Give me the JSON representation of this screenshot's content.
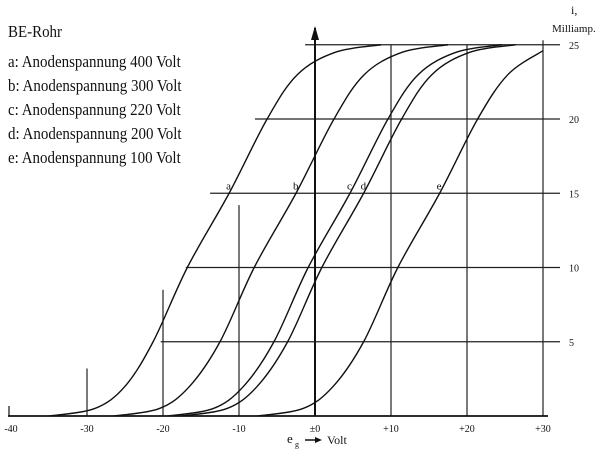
{
  "chart_data": {
    "type": "line",
    "title": "BE-Rohr",
    "xlabel": "e_g → Volt",
    "xlabel_main": "e",
    "xlabel_sub": "g",
    "xlabel_unit": "Volt",
    "ylabel": "i, Milliamp.",
    "ylabel_symbol": "i,",
    "ylabel_unit": "Milliamp.",
    "xlim": [
      -40,
      30
    ],
    "ylim": [
      0,
      25
    ],
    "xticks": [
      -40,
      -30,
      -20,
      -10,
      0,
      10,
      20,
      30
    ],
    "xtick_labels": [
      "-40",
      "-30",
      "-20",
      "-10",
      "±0",
      "+10",
      "+20",
      "+30"
    ],
    "yticks": [
      5,
      10,
      15,
      20,
      25
    ],
    "ytick_labels": [
      "5",
      "10",
      "15",
      "20",
      "25"
    ],
    "grid": true,
    "legend_position": "top-left",
    "series": [
      {
        "key": "a",
        "name": "a: Anodenspannung 400 Volt",
        "x": [
          -35,
          -29,
          -25,
          -21.3,
          -16.8,
          -11.3,
          -6.3,
          -2.3,
          2.7,
          8.7
        ],
        "y": [
          0,
          0.5,
          2,
          5,
          10,
          15,
          20,
          23,
          24.5,
          25
        ]
      },
      {
        "key": "b",
        "name": "b: Anodenspannung 300 Volt",
        "x": [
          -26.5,
          -20.5,
          -16.5,
          -12.5,
          -8,
          -2.5,
          2.5,
          6.5,
          11.5,
          17.5
        ],
        "y": [
          0,
          0.5,
          2,
          5,
          10,
          15,
          20,
          23,
          24.5,
          25
        ]
      },
      {
        "key": "c",
        "name": "c: Anodenspannung 220 Volt",
        "x": [
          -19.4,
          -13.4,
          -9.4,
          -5.4,
          -0.9,
          4.6,
          9.6,
          13.6,
          18.6,
          24.6
        ],
        "y": [
          0,
          0.5,
          2,
          5,
          10,
          15,
          20,
          23,
          24.5,
          25
        ]
      },
      {
        "key": "d",
        "name": "d: Anodenspannung 200 Volt",
        "x": [
          -17.6,
          -11.6,
          -7.6,
          -3.6,
          0.9,
          6.4,
          11.4,
          15.4,
          20.4,
          26.4
        ],
        "y": [
          0,
          0.5,
          2,
          5,
          10,
          15,
          20,
          23,
          24.5,
          25
        ]
      },
      {
        "key": "e",
        "name": "e: Anodenspannung 100 Volt",
        "x": [
          -7.6,
          -1.6,
          2.4,
          6.4,
          10.9,
          16.4,
          21.4,
          25.4,
          30
        ],
        "y": [
          0,
          0.5,
          2,
          5,
          10,
          15,
          20,
          23,
          24.6
        ]
      }
    ]
  }
}
